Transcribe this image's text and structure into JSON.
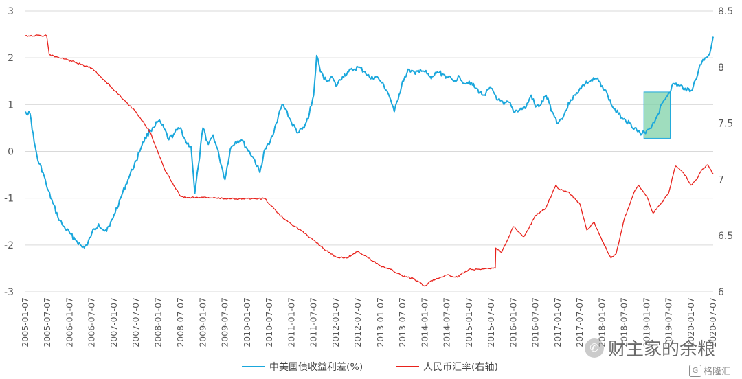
{
  "chart_data": {
    "type": "line",
    "x_range": [
      "2005-01-07",
      "2020-07-07"
    ],
    "y_left": {
      "ylim": [
        -3,
        3
      ],
      "ticks": [
        3,
        2,
        1,
        0,
        -1,
        -2,
        -3
      ],
      "tick_labels": [
        "3",
        "2",
        "1",
        "0",
        "-1",
        "-2",
        "-3"
      ]
    },
    "y_right": {
      "ylim": [
        6,
        8.5
      ],
      "ticks": [
        8.5,
        8,
        7.5,
        7,
        6.5,
        6
      ],
      "tick_labels": [
        "8.5",
        "8",
        "7.5",
        "7",
        "6.5",
        "6"
      ]
    },
    "x_tick_labels": [
      "2005-01-07",
      "2005-07-07",
      "2006-01-07",
      "2006-07-07",
      "2007-01-07",
      "2007-07-07",
      "2008-01-07",
      "2008-07-07",
      "2009-01-07",
      "2009-07-07",
      "2010-01-07",
      "2010-07-07",
      "2011-01-07",
      "2011-07-07",
      "2012-01-07",
      "2012-07-07",
      "2013-01-07",
      "2013-07-07",
      "2014-01-07",
      "2014-07-07",
      "2015-01-07",
      "2015-07-07",
      "2016-01-07",
      "2016-07-07",
      "2017-01-07",
      "2017-07-07",
      "2018-01-07",
      "2018-07-07",
      "2019-01-07",
      "2019-07-07",
      "2020-01-07",
      "2020-07-07"
    ],
    "grid": "horizontal",
    "legend_position": "bottom",
    "series": [
      {
        "name": "中美国债收益利差(%)",
        "axis": "left",
        "color": "#1aa7dc",
        "points": [
          [
            "2005-01-07",
            0.85
          ],
          [
            "2005-02-15",
            0.8
          ],
          [
            "2005-03-20",
            0.2
          ],
          [
            "2005-04-20",
            -0.2
          ],
          [
            "2005-06-01",
            -0.45
          ],
          [
            "2005-07-07",
            -0.8
          ],
          [
            "2005-08-20",
            -1.1
          ],
          [
            "2005-10-01",
            -1.4
          ],
          [
            "2005-11-15",
            -1.6
          ],
          [
            "2006-01-07",
            -1.75
          ],
          [
            "2006-03-01",
            -1.9
          ],
          [
            "2006-04-20",
            -2.05
          ],
          [
            "2006-06-01",
            -2.0
          ],
          [
            "2006-07-07",
            -1.75
          ],
          [
            "2006-09-01",
            -1.55
          ],
          [
            "2006-10-20",
            -1.7
          ],
          [
            "2006-12-01",
            -1.6
          ],
          [
            "2007-01-07",
            -1.35
          ],
          [
            "2007-03-01",
            -1.0
          ],
          [
            "2007-05-01",
            -0.6
          ],
          [
            "2007-07-07",
            -0.2
          ],
          [
            "2007-09-01",
            0.2
          ],
          [
            "2007-11-01",
            0.45
          ],
          [
            "2008-01-07",
            0.65
          ],
          [
            "2008-02-20",
            0.5
          ],
          [
            "2008-04-01",
            0.25
          ],
          [
            "2008-05-20",
            0.4
          ],
          [
            "2008-07-07",
            0.5
          ],
          [
            "2008-08-20",
            0.2
          ],
          [
            "2008-10-01",
            0.1
          ],
          [
            "2008-11-01",
            -0.9
          ],
          [
            "2008-12-01",
            -0.3
          ],
          [
            "2009-01-07",
            0.5
          ],
          [
            "2009-02-20",
            0.15
          ],
          [
            "2009-04-01",
            0.35
          ],
          [
            "2009-05-20",
            -0.1
          ],
          [
            "2009-07-07",
            -0.6
          ],
          [
            "2009-08-20",
            0.05
          ],
          [
            "2009-10-01",
            0.2
          ],
          [
            "2009-11-20",
            0.25
          ],
          [
            "2010-01-07",
            0.05
          ],
          [
            "2010-03-01",
            -0.15
          ],
          [
            "2010-04-20",
            -0.45
          ],
          [
            "2010-06-01",
            0.05
          ],
          [
            "2010-07-07",
            0.15
          ],
          [
            "2010-09-01",
            0.6
          ],
          [
            "2010-10-20",
            1.0
          ],
          [
            "2010-11-20",
            0.9
          ],
          [
            "2011-01-07",
            0.6
          ],
          [
            "2011-03-01",
            0.4
          ],
          [
            "2011-04-20",
            0.5
          ],
          [
            "2011-06-01",
            0.8
          ],
          [
            "2011-07-07",
            1.2
          ],
          [
            "2011-08-01",
            2.05
          ],
          [
            "2011-09-01",
            1.7
          ],
          [
            "2011-10-20",
            1.5
          ],
          [
            "2011-12-01",
            1.6
          ],
          [
            "2012-01-07",
            1.4
          ],
          [
            "2012-03-01",
            1.6
          ],
          [
            "2012-04-20",
            1.7
          ],
          [
            "2012-06-01",
            1.75
          ],
          [
            "2012-07-07",
            1.8
          ],
          [
            "2012-09-01",
            1.7
          ],
          [
            "2012-10-20",
            1.55
          ],
          [
            "2012-12-01",
            1.6
          ],
          [
            "2013-01-07",
            1.5
          ],
          [
            "2013-03-01",
            1.3
          ],
          [
            "2013-04-01",
            1.1
          ],
          [
            "2013-05-01",
            0.85
          ],
          [
            "2013-06-01",
            1.1
          ],
          [
            "2013-07-07",
            1.5
          ],
          [
            "2013-09-01",
            1.75
          ],
          [
            "2013-10-20",
            1.65
          ],
          [
            "2013-12-01",
            1.75
          ],
          [
            "2014-01-07",
            1.7
          ],
          [
            "2014-03-01",
            1.55
          ],
          [
            "2014-04-20",
            1.7
          ],
          [
            "2014-06-01",
            1.65
          ],
          [
            "2014-07-07",
            1.6
          ],
          [
            "2014-09-01",
            1.5
          ],
          [
            "2014-10-20",
            1.6
          ],
          [
            "2014-12-01",
            1.45
          ],
          [
            "2015-01-07",
            1.5
          ],
          [
            "2015-03-01",
            1.35
          ],
          [
            "2015-05-01",
            1.2
          ],
          [
            "2015-07-07",
            1.35
          ],
          [
            "2015-09-01",
            1.1
          ],
          [
            "2015-10-20",
            1.0
          ],
          [
            "2015-12-01",
            1.05
          ],
          [
            "2016-01-07",
            0.85
          ],
          [
            "2016-03-01",
            0.9
          ],
          [
            "2016-04-20",
            0.95
          ],
          [
            "2016-06-01",
            1.2
          ],
          [
            "2016-07-07",
            0.95
          ],
          [
            "2016-08-20",
            1.0
          ],
          [
            "2016-10-01",
            1.2
          ],
          [
            "2016-11-20",
            0.85
          ],
          [
            "2017-01-07",
            0.6
          ],
          [
            "2017-03-01",
            0.8
          ],
          [
            "2017-04-20",
            1.1
          ],
          [
            "2017-06-01",
            1.2
          ],
          [
            "2017-07-07",
            1.35
          ],
          [
            "2017-08-20",
            1.45
          ],
          [
            "2017-10-01",
            1.5
          ],
          [
            "2017-11-20",
            1.55
          ],
          [
            "2018-01-07",
            1.4
          ],
          [
            "2018-02-20",
            1.2
          ],
          [
            "2018-04-01",
            0.95
          ],
          [
            "2018-05-20",
            0.8
          ],
          [
            "2018-07-07",
            0.7
          ],
          [
            "2018-08-20",
            0.6
          ],
          [
            "2018-10-01",
            0.5
          ],
          [
            "2018-11-20",
            0.35
          ],
          [
            "2019-01-07",
            0.45
          ],
          [
            "2019-02-20",
            0.55
          ],
          [
            "2019-04-01",
            0.75
          ],
          [
            "2019-05-20",
            1.05
          ],
          [
            "2019-07-07",
            1.25
          ],
          [
            "2019-08-20",
            1.45
          ],
          [
            "2019-10-01",
            1.4
          ],
          [
            "2019-11-20",
            1.35
          ],
          [
            "2020-01-07",
            1.3
          ],
          [
            "2020-02-20",
            1.55
          ],
          [
            "2020-03-20",
            1.85
          ],
          [
            "2020-05-01",
            2.0
          ],
          [
            "2020-06-10",
            2.1
          ],
          [
            "2020-07-07",
            2.45
          ]
        ]
      },
      {
        "name": "人民币汇率(右轴)",
        "axis": "right",
        "color": "#e8221c",
        "points": [
          [
            "2005-01-07",
            8.28
          ],
          [
            "2005-07-01",
            8.28
          ],
          [
            "2005-07-22",
            8.11
          ],
          [
            "2005-11-01",
            8.08
          ],
          [
            "2006-03-01",
            8.04
          ],
          [
            "2006-07-07",
            7.99
          ],
          [
            "2006-11-01",
            7.87
          ],
          [
            "2007-03-01",
            7.74
          ],
          [
            "2007-07-07",
            7.6
          ],
          [
            "2007-11-01",
            7.42
          ],
          [
            "2008-03-01",
            7.08
          ],
          [
            "2008-05-01",
            6.97
          ],
          [
            "2008-07-07",
            6.85
          ],
          [
            "2008-09-01",
            6.84
          ],
          [
            "2009-01-07",
            6.84
          ],
          [
            "2009-07-07",
            6.83
          ],
          [
            "2010-01-07",
            6.83
          ],
          [
            "2010-06-01",
            6.83
          ],
          [
            "2010-07-07",
            6.78
          ],
          [
            "2010-09-01",
            6.72
          ],
          [
            "2010-11-01",
            6.65
          ],
          [
            "2011-01-07",
            6.6
          ],
          [
            "2011-04-01",
            6.54
          ],
          [
            "2011-07-07",
            6.46
          ],
          [
            "2011-10-01",
            6.38
          ],
          [
            "2012-01-07",
            6.31
          ],
          [
            "2012-04-01",
            6.3
          ],
          [
            "2012-07-07",
            6.36
          ],
          [
            "2012-10-01",
            6.3
          ],
          [
            "2013-01-07",
            6.23
          ],
          [
            "2013-04-01",
            6.2
          ],
          [
            "2013-07-07",
            6.14
          ],
          [
            "2013-10-01",
            6.12
          ],
          [
            "2014-01-07",
            6.05
          ],
          [
            "2014-03-01",
            6.1
          ],
          [
            "2014-07-07",
            6.15
          ],
          [
            "2014-10-01",
            6.13
          ],
          [
            "2015-01-07",
            6.2
          ],
          [
            "2015-04-01",
            6.2
          ],
          [
            "2015-08-10",
            6.21
          ],
          [
            "2015-08-14",
            6.39
          ],
          [
            "2015-10-01",
            6.35
          ],
          [
            "2016-01-07",
            6.58
          ],
          [
            "2016-04-01",
            6.49
          ],
          [
            "2016-07-07",
            6.68
          ],
          [
            "2016-10-01",
            6.75
          ],
          [
            "2016-12-20",
            6.95
          ],
          [
            "2017-01-07",
            6.92
          ],
          [
            "2017-04-01",
            6.89
          ],
          [
            "2017-07-07",
            6.78
          ],
          [
            "2017-09-01",
            6.55
          ],
          [
            "2017-11-01",
            6.62
          ],
          [
            "2018-01-07",
            6.45
          ],
          [
            "2018-03-20",
            6.3
          ],
          [
            "2018-05-01",
            6.34
          ],
          [
            "2018-07-07",
            6.65
          ],
          [
            "2018-10-01",
            6.9
          ],
          [
            "2018-11-01",
            6.95
          ],
          [
            "2019-01-07",
            6.85
          ],
          [
            "2019-03-01",
            6.7
          ],
          [
            "2019-05-01",
            6.78
          ],
          [
            "2019-07-07",
            6.88
          ],
          [
            "2019-09-01",
            7.12
          ],
          [
            "2019-10-20",
            7.08
          ],
          [
            "2019-12-01",
            7.02
          ],
          [
            "2020-01-07",
            6.95
          ],
          [
            "2020-02-20",
            7.0
          ],
          [
            "2020-04-01",
            7.08
          ],
          [
            "2020-05-20",
            7.13
          ],
          [
            "2020-07-07",
            7.05
          ]
        ]
      }
    ],
    "highlight_box": {
      "x_range": [
        "2018-12-15",
        "2019-07-20"
      ],
      "y_range_left": [
        0.28,
        1.27
      ],
      "color": "#7fd1a8"
    }
  },
  "watermark": {
    "icon": "wechat-icon",
    "text": "财主家的余粮"
  },
  "badge": {
    "icon": "gelonghui-logo-icon",
    "text": "格隆汇"
  }
}
